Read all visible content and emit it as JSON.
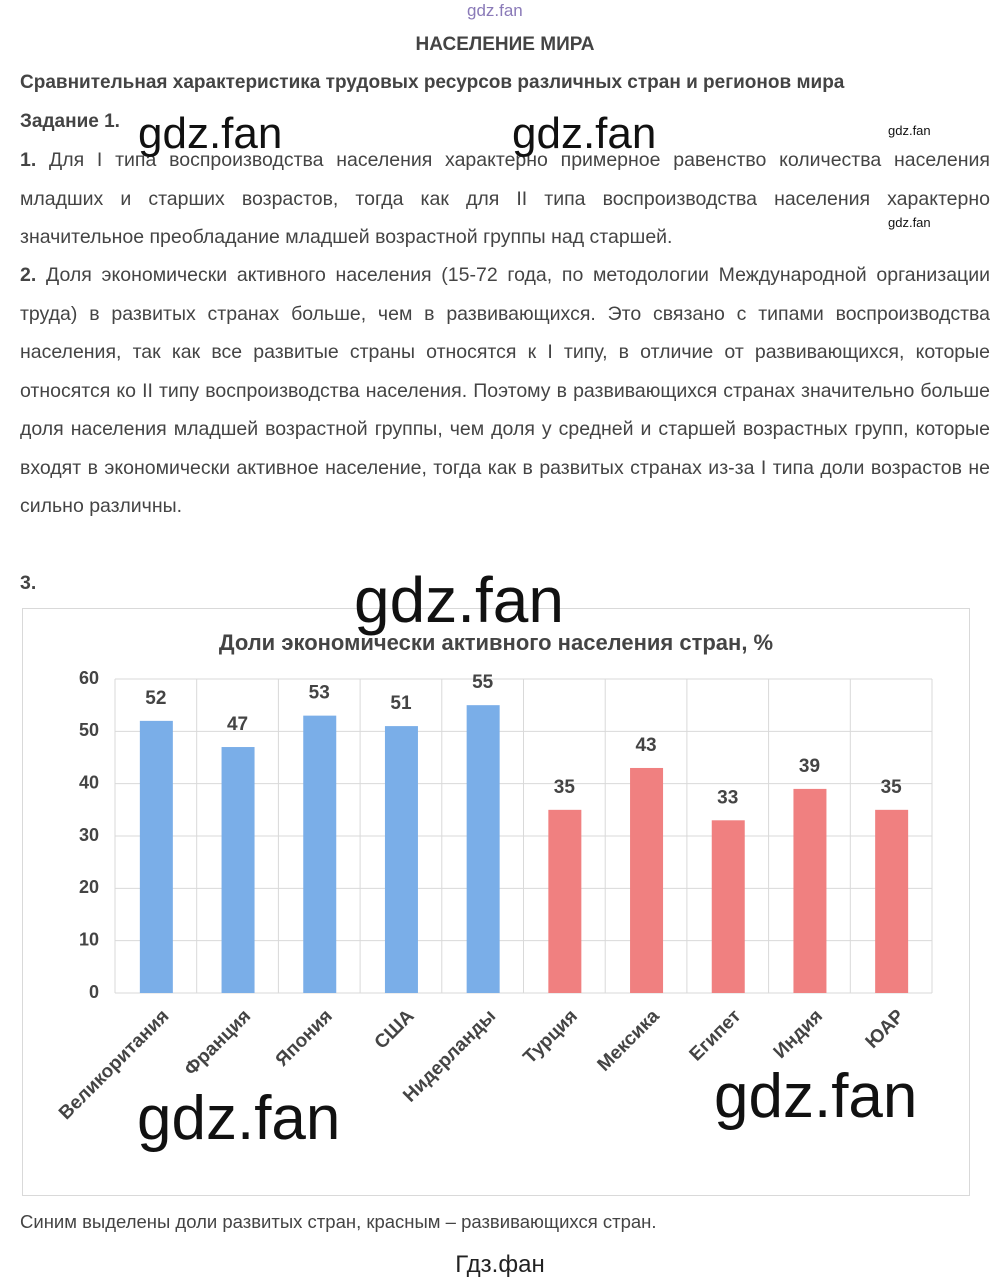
{
  "header": {
    "title": "НАСЕЛЕНИЕ МИРА",
    "subtitle": "Сравнительная характеристика трудовых ресурсов различных стран и регионов мира",
    "task": "Задание 1."
  },
  "paragraphs": [
    {
      "number": "1.",
      "text": "Для I типа воспроизводства населения характерно примерное равенство количества населения младших и старших возрастов, тогда как для II типа воспроизводства населения характерно значительное преобладание младшей возрастной группы над старшей."
    },
    {
      "number": "2.",
      "text": "Доля экономически активного населения (15-72 года, по методологии Международной организации труда) в развитых странах больше, чем в развивающихся. Это связано с типами воспроизводства населения, так как все развитые страны относятся к I типу, в отличие от развивающихся, которые относятся ко II типу воспроизводства населения. Поэтому в развивающихся странах значительно больше доля населения младшей возрастной группы, чем доля у средней и старшей возрастных групп, которые входят в экономически активное население, тогда как в развитых странах из-за I типа доли возрастов не сильно различны."
    },
    {
      "number": "3."
    }
  ],
  "chart_data": {
    "type": "bar",
    "title": "Доли экономически активного населения стран, %",
    "categories": [
      "Великоритания",
      "Франция",
      "Япония",
      "США",
      "Нидерланды",
      "Турция",
      "Мексика",
      "Египет",
      "Индия",
      "ЮАР"
    ],
    "values": [
      52,
      47,
      53,
      51,
      55,
      35,
      43,
      33,
      39,
      35
    ],
    "colors": [
      "#7aaee8",
      "#7aaee8",
      "#7aaee8",
      "#7aaee8",
      "#7aaee8",
      "#f08080",
      "#f08080",
      "#f08080",
      "#f08080",
      "#f08080"
    ],
    "ylim": [
      0,
      60
    ],
    "yticks": [
      0,
      10,
      20,
      30,
      40,
      50,
      60
    ],
    "grid": true
  },
  "caption": "Синим выделены доли развитых стран, красным – развивающихся стран.",
  "footer": "Гдз.фан",
  "watermarks": [
    "gdz.fan",
    "gdz.fan",
    "gdz.fan",
    "gdz.fan",
    "gdz.fan",
    "gdz.fan",
    "gdz.fan",
    "gdz.fan"
  ]
}
